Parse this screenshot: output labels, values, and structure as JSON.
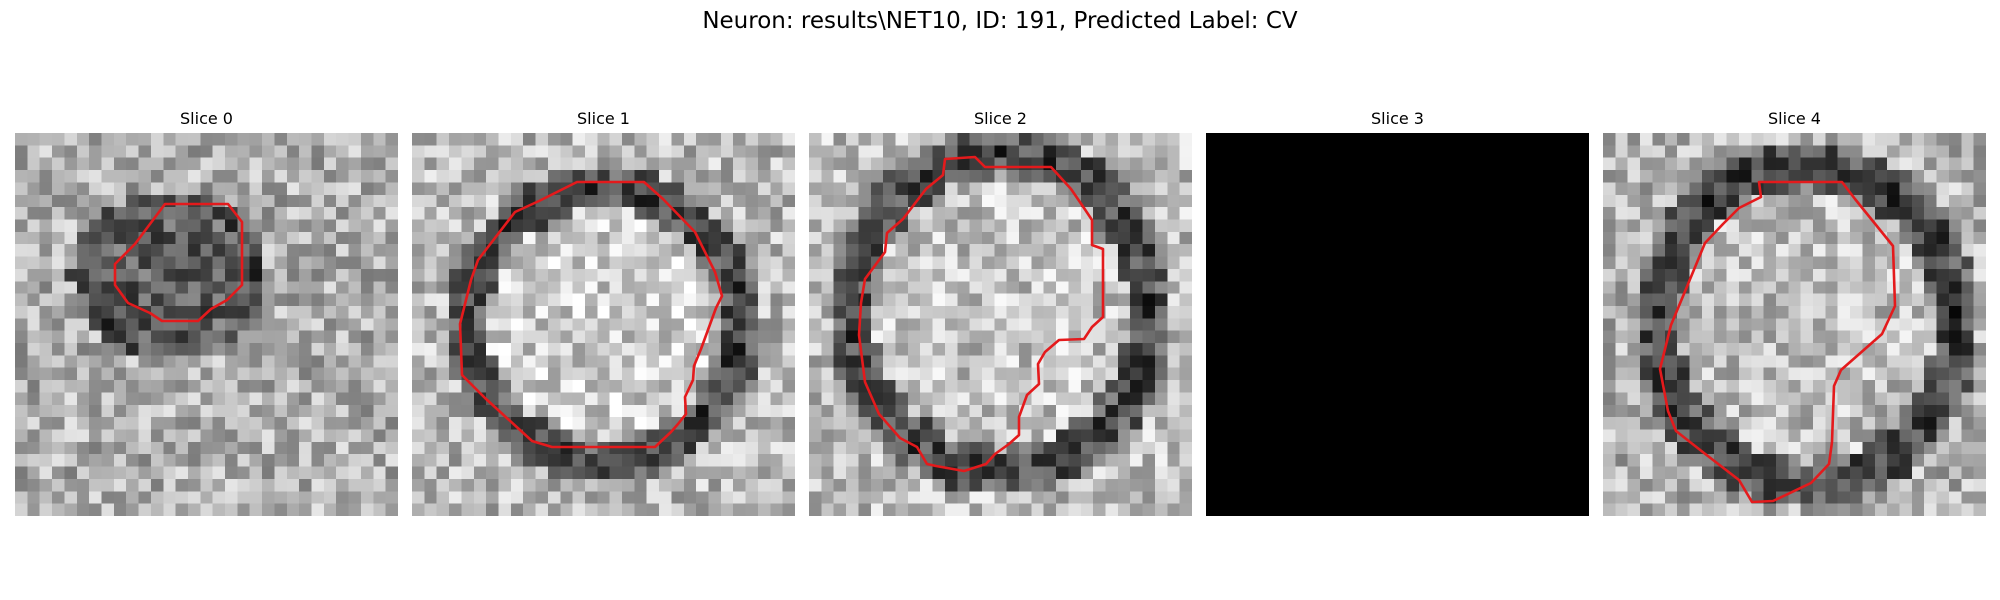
{
  "figure": {
    "title": "Neuron: results\\NET10, ID: 191, Predicted Label: CV",
    "outline_color": "#e41a1c",
    "colormap": "gray",
    "panels": [
      {
        "title": "Slice 0",
        "empty": false
      },
      {
        "title": "Slice 1",
        "empty": false
      },
      {
        "title": "Slice 2",
        "empty": false
      },
      {
        "title": "Slice 3",
        "empty": true
      },
      {
        "title": "Slice 4",
        "empty": false
      }
    ]
  }
}
